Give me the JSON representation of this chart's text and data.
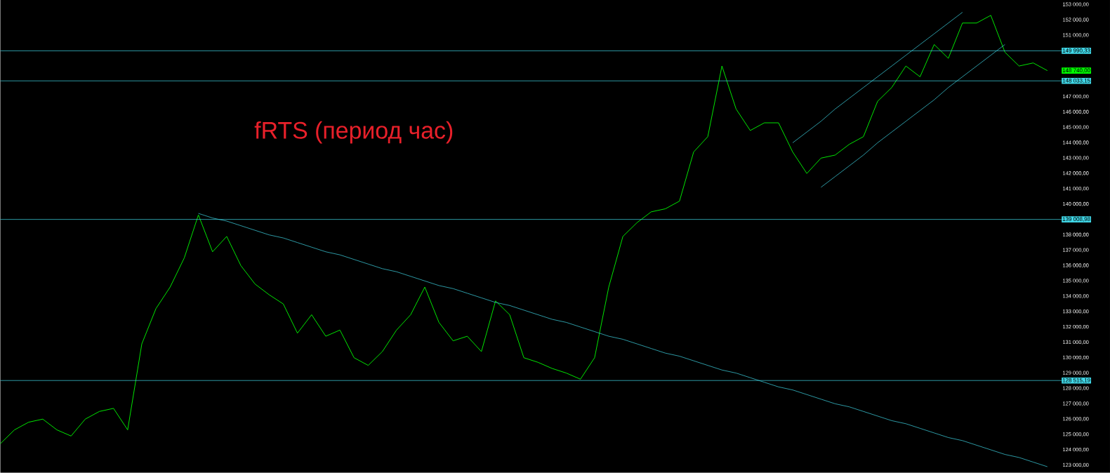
{
  "chart_data": {
    "type": "line",
    "title": "fRTS (период час)",
    "tick_labels": "y",
    "ylim": [
      122500,
      153300
    ],
    "categories": [
      null,
      null,
      null,
      null,
      null,
      null,
      null,
      null,
      null,
      null,
      null,
      null,
      null,
      null,
      null,
      null,
      null,
      null,
      null,
      null,
      null,
      null,
      null,
      null,
      null,
      null,
      null,
      null,
      null,
      null,
      null,
      null,
      null,
      null,
      null,
      null,
      null,
      null,
      null,
      null,
      null,
      null,
      null,
      null,
      null,
      null,
      null,
      null,
      null,
      null,
      null,
      null,
      null,
      null,
      null,
      null,
      null,
      null,
      null,
      null,
      null,
      null,
      null,
      null,
      null,
      null,
      null,
      null,
      null,
      null,
      null,
      null,
      null,
      null,
      null
    ],
    "yticks": [
      {
        "value": 123000,
        "label": "123 000,00"
      },
      {
        "value": 124000,
        "label": "124 000,00"
      },
      {
        "value": 125000,
        "label": "125 000,00"
      },
      {
        "value": 126000,
        "label": "126 000,00"
      },
      {
        "value": 127000,
        "label": "127 000,00"
      },
      {
        "value": 128000,
        "label": "128 000,00"
      },
      {
        "value": 129000,
        "label": "129 000,00"
      },
      {
        "value": 130000,
        "label": "130 000,00"
      },
      {
        "value": 131000,
        "label": "131 000,00"
      },
      {
        "value": 132000,
        "label": "132 000,00"
      },
      {
        "value": 133000,
        "label": "133 000,00"
      },
      {
        "value": 134000,
        "label": "134 000,00"
      },
      {
        "value": 135000,
        "label": "135 000,00"
      },
      {
        "value": 136000,
        "label": "136 000,00"
      },
      {
        "value": 137000,
        "label": "137 000,00"
      },
      {
        "value": 138000,
        "label": "138 000,00"
      },
      {
        "value": 140000,
        "label": "140 000,00"
      },
      {
        "value": 141000,
        "label": "141 000,00"
      },
      {
        "value": 142000,
        "label": "142 000,00"
      },
      {
        "value": 143000,
        "label": "143 000,00"
      },
      {
        "value": 144000,
        "label": "144 000,00"
      },
      {
        "value": 145000,
        "label": "145 000,00"
      },
      {
        "value": 146000,
        "label": "146 000,00"
      },
      {
        "value": 147000,
        "label": "147 000,00"
      },
      {
        "value": 151000,
        "label": "151 000,00"
      },
      {
        "value": 152000,
        "label": "152 000,00"
      },
      {
        "value": 153000,
        "label": "153 000,00"
      }
    ],
    "series": [
      {
        "color": "#00ff00",
        "values": [
          124400,
          125300,
          125800,
          126000,
          125300,
          124900,
          126000,
          126500,
          126700,
          125300,
          130900,
          133200,
          134600,
          136500,
          139300,
          136900,
          137900,
          136000,
          134800,
          134100,
          133500,
          131600,
          132800,
          131400,
          131800,
          130000,
          129500,
          130400,
          131800,
          132800,
          134600,
          132300,
          131100,
          131400,
          130400,
          133700,
          132800,
          130000,
          129700,
          129300,
          129000,
          128600,
          130000,
          134600,
          137900,
          138800,
          139500,
          139700,
          140200,
          143400,
          144400,
          149000,
          146200,
          144800,
          145300,
          145300,
          143400,
          142000,
          143000,
          143200,
          143900,
          144400,
          146700,
          147600,
          149000,
          148300,
          150400,
          149500,
          151800,
          151800,
          152300,
          149900,
          149000,
          149200,
          148700
        ]
      },
      {
        "color": "#40d8e8",
        "values": [
          null,
          null,
          null,
          null,
          null,
          null,
          null,
          null,
          null,
          null,
          null,
          null,
          null,
          null,
          139400,
          139100,
          138900,
          138600,
          138300,
          138000,
          137800,
          137500,
          137200,
          136900,
          136700,
          136400,
          136100,
          135800,
          135600,
          135300,
          135000,
          134700,
          134500,
          134200,
          133900,
          133600,
          133400,
          133100,
          132800,
          132500,
          132300,
          132000,
          131700,
          131400,
          131200,
          130900,
          130600,
          130300,
          130100,
          129800,
          129500,
          129200,
          129000,
          128700,
          128400,
          128100,
          127900,
          127600,
          127300,
          127000,
          126800,
          126500,
          126200,
          125900,
          125700,
          125400,
          125100,
          124800,
          124600,
          124300,
          124000,
          123700,
          123500,
          123200,
          122900
        ]
      },
      {
        "color": "#40d8e8",
        "values": [
          null,
          null,
          null,
          null,
          null,
          null,
          null,
          null,
          null,
          null,
          null,
          null,
          null,
          null,
          null,
          null,
          null,
          null,
          null,
          null,
          null,
          null,
          null,
          null,
          null,
          null,
          null,
          null,
          null,
          null,
          null,
          null,
          null,
          null,
          null,
          null,
          null,
          null,
          null,
          null,
          null,
          null,
          null,
          null,
          null,
          null,
          null,
          null,
          null,
          null,
          null,
          null,
          null,
          null,
          null,
          null,
          144000,
          144700,
          145400,
          146200,
          146900,
          147600,
          148300,
          149000,
          149700,
          150400,
          151100,
          151800,
          152500,
          null,
          null,
          null,
          null,
          null,
          null
        ]
      },
      {
        "color": "#40d8e8",
        "values": [
          null,
          null,
          null,
          null,
          null,
          null,
          null,
          null,
          null,
          null,
          null,
          null,
          null,
          null,
          null,
          null,
          null,
          null,
          null,
          null,
          null,
          null,
          null,
          null,
          null,
          null,
          null,
          null,
          null,
          null,
          null,
          null,
          null,
          null,
          null,
          null,
          null,
          null,
          null,
          null,
          null,
          null,
          null,
          null,
          null,
          null,
          null,
          null,
          null,
          null,
          null,
          null,
          null,
          null,
          null,
          null,
          null,
          null,
          141100,
          141800,
          142500,
          143200,
          144000,
          144700,
          145400,
          146100,
          146800,
          147600,
          148300,
          149000,
          149700,
          150400,
          null,
          null,
          null
        ]
      }
    ],
    "ref_lines": [
      {
        "axis": "y",
        "value": 149990.33,
        "label": "149 990,33",
        "color": "#40d8e8"
      },
      {
        "axis": "y",
        "value": 148033.15,
        "label": "148 033,15",
        "color": "#40d8e8"
      },
      {
        "axis": "y",
        "value": 139008.98,
        "label": "139 008,98",
        "color": "#40d8e8"
      },
      {
        "axis": "y",
        "value": 128515.19,
        "label": "128 515,19",
        "color": "#40d8e8"
      }
    ],
    "annotations": [
      "148 740,00"
    ]
  }
}
